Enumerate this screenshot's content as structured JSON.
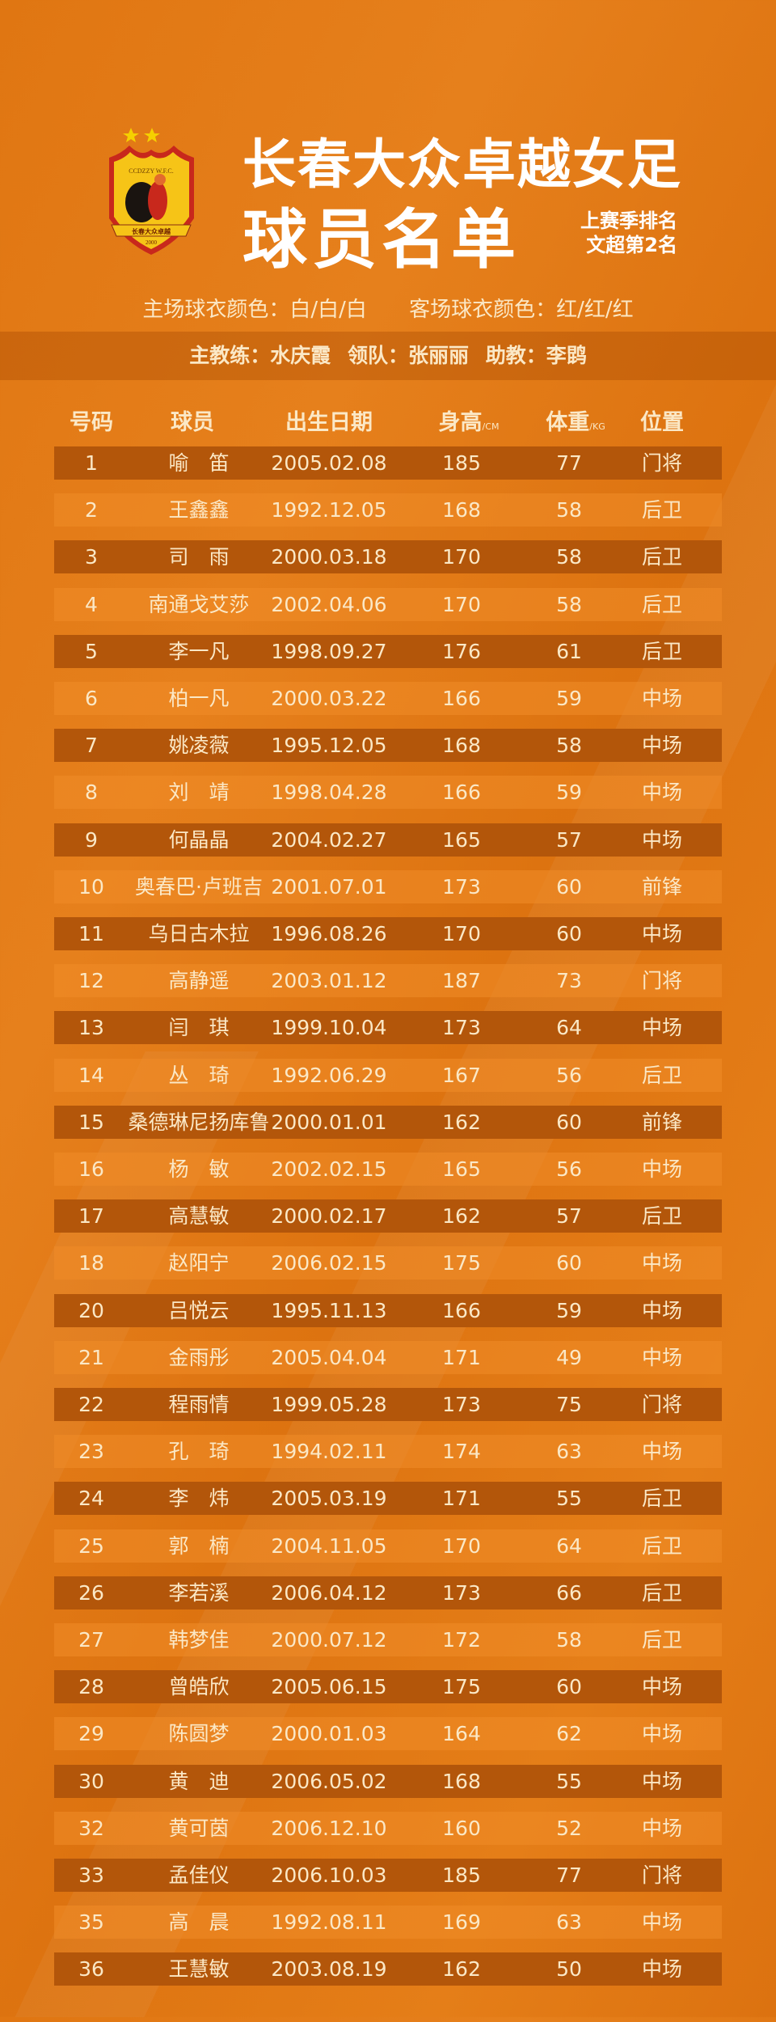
{
  "header": {
    "title_line1": "长春大众卓越女足",
    "title_line2": "球员名单",
    "last_season_label": "上赛季排名",
    "last_season_rank": "文超第2名",
    "logo_text": "CCDZZY W.F.C.",
    "logo_text_cn": "长春大众卓越",
    "logo_year": "2000"
  },
  "kits": {
    "home": "主场球衣颜色：白/白/白",
    "away": "客场球衣颜色：红/红/红"
  },
  "staff": {
    "head_coach": "主教练：水庆霞",
    "team_leader": "领队：张丽丽",
    "assistant": "助教：李鹍"
  },
  "columns": {
    "number": "号码",
    "player": "球员",
    "birth": "出生日期",
    "height": "身高",
    "height_unit": "/CM",
    "weight": "体重",
    "weight_unit": "/KG",
    "position": "位置"
  },
  "colors": {
    "background": "#e07612",
    "row_dark": "#b3560a",
    "text": "#fbe8c6"
  },
  "players": [
    {
      "no": "1",
      "name": "喻　笛",
      "birth": "2005.02.08",
      "height": "185",
      "weight": "77",
      "pos": "门将"
    },
    {
      "no": "2",
      "name": "王鑫鑫",
      "birth": "1992.12.05",
      "height": "168",
      "weight": "58",
      "pos": "后卫"
    },
    {
      "no": "3",
      "name": "司　雨",
      "birth": "2000.03.18",
      "height": "170",
      "weight": "58",
      "pos": "后卫"
    },
    {
      "no": "4",
      "name": "南通戈艾莎",
      "birth": "2002.04.06",
      "height": "170",
      "weight": "58",
      "pos": "后卫"
    },
    {
      "no": "5",
      "name": "李一凡",
      "birth": "1998.09.27",
      "height": "176",
      "weight": "61",
      "pos": "后卫"
    },
    {
      "no": "6",
      "name": "柏一凡",
      "birth": "2000.03.22",
      "height": "166",
      "weight": "59",
      "pos": "中场"
    },
    {
      "no": "7",
      "name": "姚凌薇",
      "birth": "1995.12.05",
      "height": "168",
      "weight": "58",
      "pos": "中场"
    },
    {
      "no": "8",
      "name": "刘　靖",
      "birth": "1998.04.28",
      "height": "166",
      "weight": "59",
      "pos": "中场"
    },
    {
      "no": "9",
      "name": "何晶晶",
      "birth": "2004.02.27",
      "height": "165",
      "weight": "57",
      "pos": "中场"
    },
    {
      "no": "10",
      "name": "奥春巴·卢班吉",
      "birth": "2001.07.01",
      "height": "173",
      "weight": "60",
      "pos": "前锋"
    },
    {
      "no": "11",
      "name": "乌日古木拉",
      "birth": "1996.08.26",
      "height": "170",
      "weight": "60",
      "pos": "中场"
    },
    {
      "no": "12",
      "name": "高静遥",
      "birth": "2003.01.12",
      "height": "187",
      "weight": "73",
      "pos": "门将"
    },
    {
      "no": "13",
      "name": "闫　琪",
      "birth": "1999.10.04",
      "height": "173",
      "weight": "64",
      "pos": "中场"
    },
    {
      "no": "14",
      "name": "丛　琦",
      "birth": "1992.06.29",
      "height": "167",
      "weight": "56",
      "pos": "后卫"
    },
    {
      "no": "15",
      "name": "桑德琳尼扬库鲁",
      "birth": "2000.01.01",
      "height": "162",
      "weight": "60",
      "pos": "前锋"
    },
    {
      "no": "16",
      "name": "杨　敏",
      "birth": "2002.02.15",
      "height": "165",
      "weight": "56",
      "pos": "中场"
    },
    {
      "no": "17",
      "name": "高慧敏",
      "birth": "2000.02.17",
      "height": "162",
      "weight": "57",
      "pos": "后卫"
    },
    {
      "no": "18",
      "name": "赵阳宁",
      "birth": "2006.02.15",
      "height": "175",
      "weight": "60",
      "pos": "中场"
    },
    {
      "no": "20",
      "name": "吕悦云",
      "birth": "1995.11.13",
      "height": "166",
      "weight": "59",
      "pos": "中场"
    },
    {
      "no": "21",
      "name": "金雨彤",
      "birth": "2005.04.04",
      "height": "171",
      "weight": "49",
      "pos": "中场"
    },
    {
      "no": "22",
      "name": "程雨情",
      "birth": "1999.05.28",
      "height": "173",
      "weight": "75",
      "pos": "门将"
    },
    {
      "no": "23",
      "name": "孔　琦",
      "birth": "1994.02.11",
      "height": "174",
      "weight": "63",
      "pos": "中场"
    },
    {
      "no": "24",
      "name": "李　炜",
      "birth": "2005.03.19",
      "height": "171",
      "weight": "55",
      "pos": "后卫"
    },
    {
      "no": "25",
      "name": "郭　楠",
      "birth": "2004.11.05",
      "height": "170",
      "weight": "64",
      "pos": "后卫"
    },
    {
      "no": "26",
      "name": "李若溪",
      "birth": "2006.04.12",
      "height": "173",
      "weight": "66",
      "pos": "后卫"
    },
    {
      "no": "27",
      "name": "韩梦佳",
      "birth": "2000.07.12",
      "height": "172",
      "weight": "58",
      "pos": "后卫"
    },
    {
      "no": "28",
      "name": "曾皓欣",
      "birth": "2005.06.15",
      "height": "175",
      "weight": "60",
      "pos": "中场"
    },
    {
      "no": "29",
      "name": "陈圆梦",
      "birth": "2000.01.03",
      "height": "164",
      "weight": "62",
      "pos": "中场"
    },
    {
      "no": "30",
      "name": "黄　迪",
      "birth": "2006.05.02",
      "height": "168",
      "weight": "55",
      "pos": "中场"
    },
    {
      "no": "32",
      "name": "黄可茵",
      "birth": "2006.12.10",
      "height": "160",
      "weight": "52",
      "pos": "中场"
    },
    {
      "no": "33",
      "name": "孟佳仪",
      "birth": "2006.10.03",
      "height": "185",
      "weight": "77",
      "pos": "门将"
    },
    {
      "no": "35",
      "name": "高　晨",
      "birth": "1992.08.11",
      "height": "169",
      "weight": "63",
      "pos": "中场"
    },
    {
      "no": "36",
      "name": "王慧敏",
      "birth": "2003.08.19",
      "height": "162",
      "weight": "50",
      "pos": "中场"
    }
  ]
}
